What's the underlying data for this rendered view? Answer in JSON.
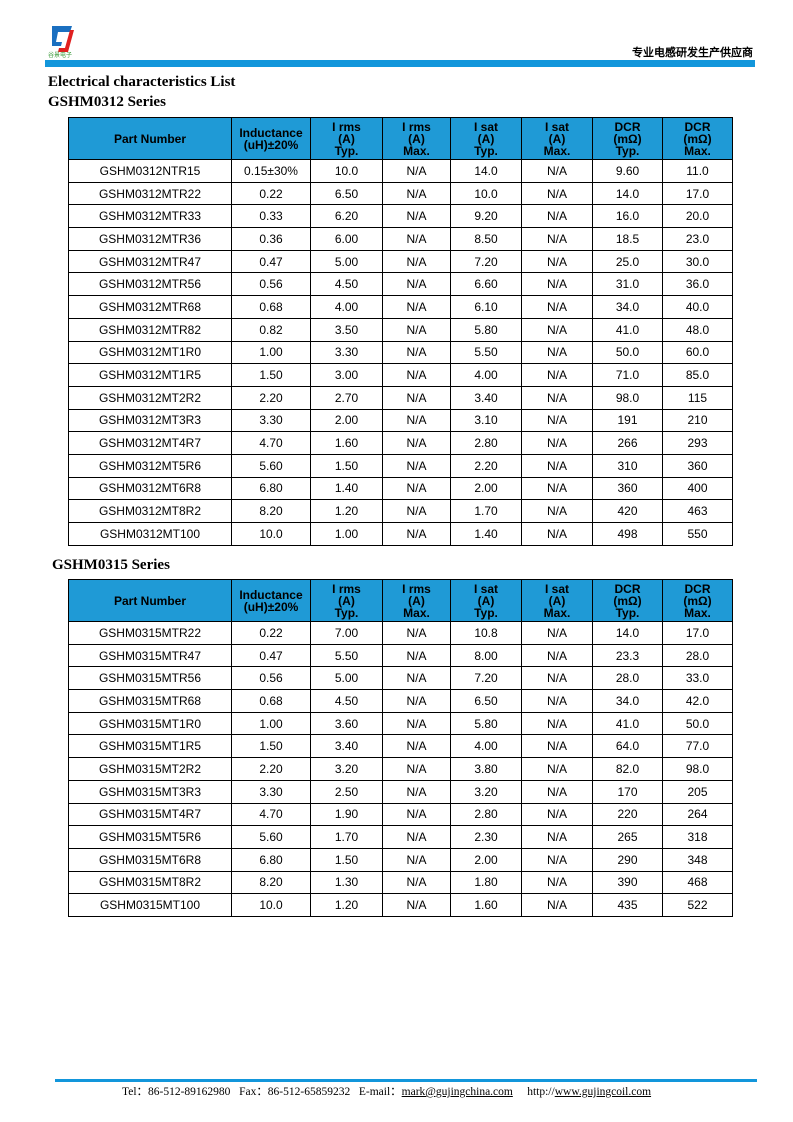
{
  "header": {
    "logo_text": "谷景电子",
    "slogan": "专业电感研发生产供应商",
    "colors": {
      "bar": "#1296db",
      "table_header": "#1f9ad6"
    }
  },
  "title": "Electrical characteristics List",
  "columns": [
    "Part Number",
    "Inductance\n(uH)±20%",
    "I rms\n(A)\nTyp.",
    "I rms\n(A)\nMax.",
    "I sat\n(A)\nTyp.",
    "I sat\n(A)\nMax.",
    "DCR\n(mΩ)\nTyp.",
    "DCR\n(mΩ)\nMax."
  ],
  "tables": [
    {
      "series": "GSHM0312 Series",
      "rows": [
        [
          "GSHM0312NTR15",
          "0.15±30%",
          "10.0",
          "N/A",
          "14.0",
          "N/A",
          "9.60",
          "11.0"
        ],
        [
          "GSHM0312MTR22",
          "0.22",
          "6.50",
          "N/A",
          "10.0",
          "N/A",
          "14.0",
          "17.0"
        ],
        [
          "GSHM0312MTR33",
          "0.33",
          "6.20",
          "N/A",
          "9.20",
          "N/A",
          "16.0",
          "20.0"
        ],
        [
          "GSHM0312MTR36",
          "0.36",
          "6.00",
          "N/A",
          "8.50",
          "N/A",
          "18.5",
          "23.0"
        ],
        [
          "GSHM0312MTR47",
          "0.47",
          "5.00",
          "N/A",
          "7.20",
          "N/A",
          "25.0",
          "30.0"
        ],
        [
          "GSHM0312MTR56",
          "0.56",
          "4.50",
          "N/A",
          "6.60",
          "N/A",
          "31.0",
          "36.0"
        ],
        [
          "GSHM0312MTR68",
          "0.68",
          "4.00",
          "N/A",
          "6.10",
          "N/A",
          "34.0",
          "40.0"
        ],
        [
          "GSHM0312MTR82",
          "0.82",
          "3.50",
          "N/A",
          "5.80",
          "N/A",
          "41.0",
          "48.0"
        ],
        [
          "GSHM0312MT1R0",
          "1.00",
          "3.30",
          "N/A",
          "5.50",
          "N/A",
          "50.0",
          "60.0"
        ],
        [
          "GSHM0312MT1R5",
          "1.50",
          "3.00",
          "N/A",
          "4.00",
          "N/A",
          "71.0",
          "85.0"
        ],
        [
          "GSHM0312MT2R2",
          "2.20",
          "2.70",
          "N/A",
          "3.40",
          "N/A",
          "98.0",
          "115"
        ],
        [
          "GSHM0312MT3R3",
          "3.30",
          "2.00",
          "N/A",
          "3.10",
          "N/A",
          "191",
          "210"
        ],
        [
          "GSHM0312MT4R7",
          "4.70",
          "1.60",
          "N/A",
          "2.80",
          "N/A",
          "266",
          "293"
        ],
        [
          "GSHM0312MT5R6",
          "5.60",
          "1.50",
          "N/A",
          "2.20",
          "N/A",
          "310",
          "360"
        ],
        [
          "GSHM0312MT6R8",
          "6.80",
          "1.40",
          "N/A",
          "2.00",
          "N/A",
          "360",
          "400"
        ],
        [
          "GSHM0312MT8R2",
          "8.20",
          "1.20",
          "N/A",
          "1.70",
          "N/A",
          "420",
          "463"
        ],
        [
          "GSHM0312MT100",
          "10.0",
          "1.00",
          "N/A",
          "1.40",
          "N/A",
          "498",
          "550"
        ]
      ]
    },
    {
      "series": "GSHM0315 Series",
      "rows": [
        [
          "GSHM0315MTR22",
          "0.22",
          "7.00",
          "N/A",
          "10.8",
          "N/A",
          "14.0",
          "17.0"
        ],
        [
          "GSHM0315MTR47",
          "0.47",
          "5.50",
          "N/A",
          "8.00",
          "N/A",
          "23.3",
          "28.0"
        ],
        [
          "GSHM0315MTR56",
          "0.56",
          "5.00",
          "N/A",
          "7.20",
          "N/A",
          "28.0",
          "33.0"
        ],
        [
          "GSHM0315MTR68",
          "0.68",
          "4.50",
          "N/A",
          "6.50",
          "N/A",
          "34.0",
          "42.0"
        ],
        [
          "GSHM0315MT1R0",
          "1.00",
          "3.60",
          "N/A",
          "5.80",
          "N/A",
          "41.0",
          "50.0"
        ],
        [
          "GSHM0315MT1R5",
          "1.50",
          "3.40",
          "N/A",
          "4.00",
          "N/A",
          "64.0",
          "77.0"
        ],
        [
          "GSHM0315MT2R2",
          "2.20",
          "3.20",
          "N/A",
          "3.80",
          "N/A",
          "82.0",
          "98.0"
        ],
        [
          "GSHM0315MT3R3",
          "3.30",
          "2.50",
          "N/A",
          "3.20",
          "N/A",
          "170",
          "205"
        ],
        [
          "GSHM0315MT4R7",
          "4.70",
          "1.90",
          "N/A",
          "2.80",
          "N/A",
          "220",
          "264"
        ],
        [
          "GSHM0315MT5R6",
          "5.60",
          "1.70",
          "N/A",
          "2.30",
          "N/A",
          "265",
          "318"
        ],
        [
          "GSHM0315MT6R8",
          "6.80",
          "1.50",
          "N/A",
          "2.00",
          "N/A",
          "290",
          "348"
        ],
        [
          "GSHM0315MT8R2",
          "8.20",
          "1.30",
          "N/A",
          "1.80",
          "N/A",
          "390",
          "468"
        ],
        [
          "GSHM0315MT100",
          "10.0",
          "1.20",
          "N/A",
          "1.60",
          "N/A",
          "435",
          "522"
        ]
      ]
    }
  ],
  "footer": {
    "tel": "Tel：86-512-89162980",
    "fax": "Fax：86-512-65859232",
    "email_label": "E-mail：",
    "email": "mark@gujingchina.com",
    "web_prefix": "http://",
    "web": "www.gujingcoil.com"
  }
}
